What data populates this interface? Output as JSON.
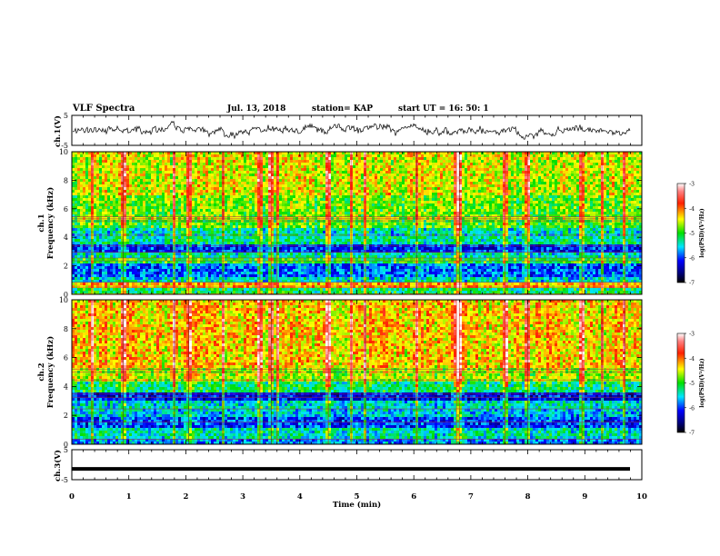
{
  "header": {
    "title": "VLF Spectra",
    "date": "Jul. 13, 2018",
    "station": "station= KAP",
    "start": "start UT = 16: 50: 1"
  },
  "chart_data": [
    {
      "type": "line",
      "panel": "ch1-waveform",
      "ylabel": "ch.1(V)",
      "ylim": [
        -5,
        5
      ],
      "yticks": [
        5,
        -5
      ],
      "xlim": [
        0,
        10
      ],
      "description_of_values": "noisy waveform roughly between -3 and 3 V",
      "amplitude_range": [
        -3,
        3
      ]
    },
    {
      "type": "heatmap",
      "panel": "ch1-spectrogram",
      "ylabel_top": "ch.1",
      "ylabel": "Frequency (kHz)",
      "ylim": [
        0,
        10
      ],
      "yticks": [
        0,
        2,
        4,
        6,
        8,
        10
      ],
      "xlim": [
        0,
        10
      ],
      "colorbar_label": "log(PSD)(V²/Hz)",
      "colorbar_range": [
        -7,
        -3
      ],
      "colorbar_ticks": [
        -3,
        -4,
        -5,
        -6,
        -7
      ],
      "bands": [
        {
          "from": 0,
          "to": 0.4,
          "level": -5.2
        },
        {
          "from": 0.4,
          "to": 0.9,
          "level": -4.2
        },
        {
          "from": 0.9,
          "to": 1.3,
          "level": -5.5
        },
        {
          "from": 1.3,
          "to": 2.2,
          "level": -5.9
        },
        {
          "from": 2.2,
          "to": 2.6,
          "level": -5.0
        },
        {
          "from": 2.6,
          "to": 3.0,
          "level": -5.4
        },
        {
          "from": 3.0,
          "to": 3.5,
          "level": -6.1
        },
        {
          "from": 3.5,
          "to": 4.1,
          "level": -5.3
        },
        {
          "from": 4.1,
          "to": 4.7,
          "level": -5.4
        },
        {
          "from": 4.7,
          "to": 5.2,
          "level": -4.9
        },
        {
          "from": 5.2,
          "to": 5.5,
          "level": -4.6
        },
        {
          "from": 5.5,
          "to": 7.0,
          "level": -4.8
        },
        {
          "from": 7.0,
          "to": 10.0,
          "level": -4.5
        }
      ],
      "lines_khz": [
        0.5,
        0.85,
        2.35,
        2.55,
        2.95,
        3.4,
        4.15,
        5.15,
        5.3,
        5.45
      ],
      "bursts_min": [
        0.35,
        0.9,
        1.8,
        2.05,
        2.65,
        3.3,
        3.5,
        3.6,
        4.5,
        4.9,
        5.15,
        6.05,
        6.75,
        6.8,
        7.6,
        8.0,
        8.95,
        9.3,
        9.7
      ]
    },
    {
      "type": "heatmap",
      "panel": "ch2-spectrogram",
      "ylabel_top": "ch.2",
      "ylabel": "Frequency (kHz)",
      "ylim": [
        0,
        10
      ],
      "yticks": [
        0,
        2,
        4,
        6,
        8,
        10
      ],
      "xlim": [
        0,
        10
      ],
      "colorbar_label": "log(PSD)(V²/Hz)",
      "colorbar_range": [
        -7,
        -3
      ],
      "colorbar_ticks": [
        -3,
        -4,
        -5,
        -6,
        -7
      ],
      "bands": [
        {
          "from": 0,
          "to": 0.3,
          "level": -5.8
        },
        {
          "from": 0.3,
          "to": 1.2,
          "level": -5.4
        },
        {
          "from": 1.2,
          "to": 1.8,
          "level": -6.0
        },
        {
          "from": 1.8,
          "to": 2.4,
          "level": -5.6
        },
        {
          "from": 2.4,
          "to": 3.1,
          "level": -5.5
        },
        {
          "from": 3.1,
          "to": 3.6,
          "level": -6.2
        },
        {
          "from": 3.6,
          "to": 4.3,
          "level": -5.2
        },
        {
          "from": 4.3,
          "to": 5.2,
          "level": -4.6
        },
        {
          "from": 5.2,
          "to": 10.0,
          "level": -4.3
        }
      ],
      "lines_khz": [
        0.35,
        1.55,
        2.45,
        3.25,
        3.5,
        4.45,
        5.0,
        5.2
      ],
      "bursts_min": [
        0.35,
        0.9,
        1.8,
        2.05,
        2.65,
        3.3,
        3.5,
        3.6,
        4.5,
        4.9,
        5.15,
        6.05,
        6.75,
        6.8,
        7.6,
        8.0,
        8.95,
        9.3,
        9.7
      ]
    },
    {
      "type": "line",
      "panel": "ch3-waveform",
      "ylabel": "ch.3(V)",
      "ylim": [
        -5,
        5
      ],
      "yticks": [
        5,
        -5
      ],
      "xlim": [
        0,
        10
      ],
      "constant_value": -1.4
    }
  ],
  "xaxis": {
    "label": "Time (min)",
    "ticks": [
      "0",
      "1",
      "2",
      "3",
      "4",
      "5",
      "6",
      "7",
      "8",
      "9",
      "10"
    ]
  },
  "colors": {
    "frame": "#000000",
    "background": "#ffffff"
  }
}
